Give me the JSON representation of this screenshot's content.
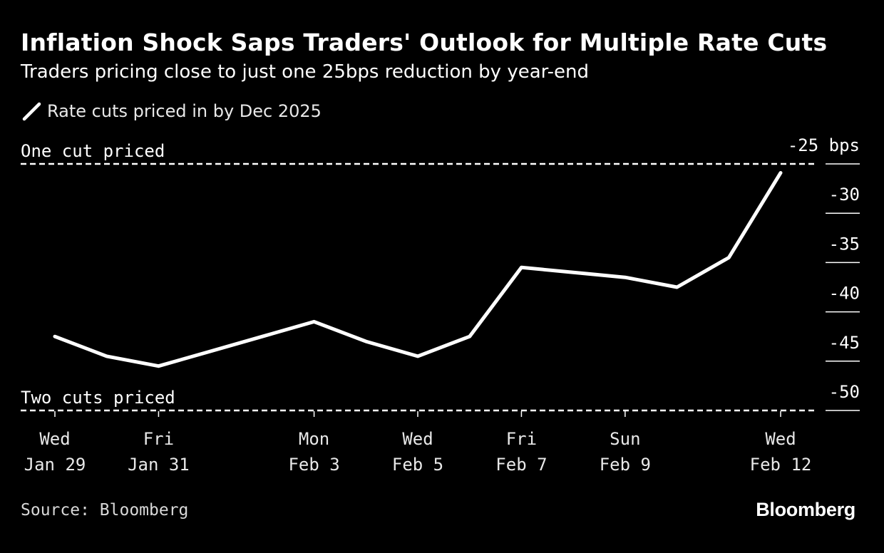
{
  "title": "Inflation Shock Saps Traders' Outlook for Multiple Rate Cuts",
  "subtitle": "Traders pricing close to just one 25bps reduction by year-end",
  "source": "Source: Bloomberg",
  "brand": "Bloomberg",
  "colors": {
    "background": "#000000",
    "line": "#ffffff",
    "text": "#ffffff"
  },
  "legend": {
    "icon": "pencil-line-icon",
    "label": "Rate cuts priced in by Dec 2025"
  },
  "chart_data": {
    "type": "line",
    "series": [
      {
        "name": "Rate cuts priced in by Dec 2025",
        "x": [
          "2025-01-29",
          "2025-01-30",
          "2025-01-31",
          "2025-02-01",
          "2025-02-02",
          "2025-02-03",
          "2025-02-04",
          "2025-02-05",
          "2025-02-06",
          "2025-02-07",
          "2025-02-08",
          "2025-02-09",
          "2025-02-10",
          "2025-02-11",
          "2025-02-12"
        ],
        "values": [
          -42.5,
          -44.5,
          -45.5,
          -44.0,
          -42.5,
          -41.0,
          -43.0,
          -44.5,
          -42.5,
          -35.5,
          -36.0,
          -36.5,
          -37.5,
          -34.5,
          -25.9
        ]
      }
    ],
    "ylim": [
      -50,
      -25
    ],
    "y_ticks": [
      -25,
      -30,
      -35,
      -40,
      -45,
      -50
    ],
    "y_tick_labels": [
      "-25 bps",
      "-30",
      "-35",
      "-40",
      "-45",
      "-50"
    ],
    "y_axis_side": "right",
    "x_ticks": [
      {
        "date": "2025-01-29",
        "line1": "Wed",
        "line2": "Jan 29"
      },
      {
        "date": "2025-01-31",
        "line1": "Fri",
        "line2": "Jan 31"
      },
      {
        "date": "2025-02-03",
        "line1": "Mon",
        "line2": "Feb 3"
      },
      {
        "date": "2025-02-05",
        "line1": "Wed",
        "line2": "Feb 5"
      },
      {
        "date": "2025-02-07",
        "line1": "Fri",
        "line2": "Feb 7"
      },
      {
        "date": "2025-02-09",
        "line1": "Sun",
        "line2": "Feb 9"
      },
      {
        "date": "2025-02-12",
        "line1": "Wed",
        "line2": "Feb 12"
      }
    ],
    "reference_lines": [
      {
        "value": -25,
        "label": "One cut priced",
        "style": "dashed"
      },
      {
        "value": -50,
        "label": "Two cuts priced",
        "style": "dashed"
      }
    ],
    "grid": false,
    "legend_position": "top-left"
  }
}
